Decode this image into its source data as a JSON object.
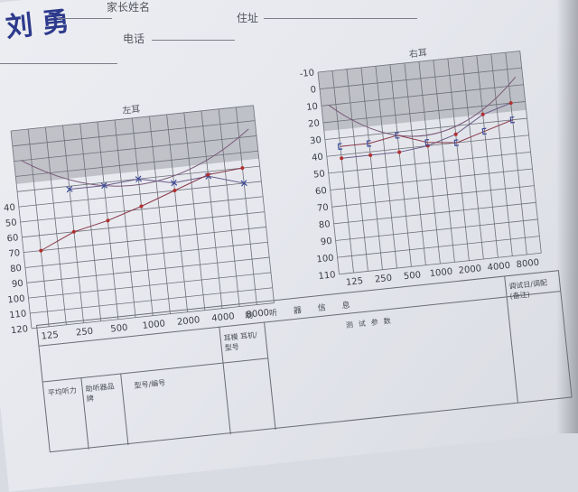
{
  "header": {
    "name_handwritten": "刘 勇",
    "parent_name_label": "家长姓名",
    "phone_label": "电话",
    "address_label": "住址"
  },
  "chart_data": [
    {
      "type": "line",
      "title": "左耳",
      "x": [
        125,
        250,
        500,
        1000,
        2000,
        4000,
        8000
      ],
      "x_tick_labels": [
        "125",
        "250",
        "500",
        "1000",
        "2000",
        "4000",
        "8000"
      ],
      "y_tick_labels": [
        "40",
        "50",
        "60",
        "70",
        "80",
        "90",
        "100",
        "110",
        "120"
      ],
      "ylim": [
        -10,
        120
      ],
      "y_inverted": true,
      "shaded_band": [
        -10,
        25
      ],
      "series": [
        {
          "marker": "x",
          "values": [
            null,
            32,
            32,
            30,
            35,
            33,
            40
          ]
        },
        {
          "marker": "o",
          "values": [
            70,
            60,
            55,
            48,
            40,
            32,
            30
          ]
        }
      ]
    },
    {
      "type": "line",
      "title": "右耳",
      "x": [
        125,
        250,
        500,
        1000,
        2000,
        4000,
        8000
      ],
      "x_tick_labels": [
        "125",
        "250",
        "500",
        "1000",
        "2000",
        "4000",
        "8000"
      ],
      "y_tick_labels": [
        "-10",
        "0",
        "10",
        "20",
        "30",
        "40",
        "50",
        "60",
        "70",
        "80",
        "90",
        "100",
        "110"
      ],
      "ylim": [
        -10,
        110
      ],
      "y_inverted": true,
      "shaded_band": [
        -10,
        25
      ],
      "series": [
        {
          "marker": "o",
          "values": [
            42,
            42,
            42,
            40,
            35,
            25,
            20
          ]
        },
        {
          "marker": "bracket",
          "values": [
            35,
            35,
            32,
            38,
            40,
            35,
            30
          ]
        }
      ]
    }
  ],
  "table": {
    "section_title": "助听器信息",
    "test_params": "测试参数",
    "col_brand": "助听器品牌",
    "col_model": "型号/编号",
    "col_ear": "耳模 耳机/型号",
    "col_avg": "平均听力",
    "col_right": "调试日/调配 (备注)"
  }
}
